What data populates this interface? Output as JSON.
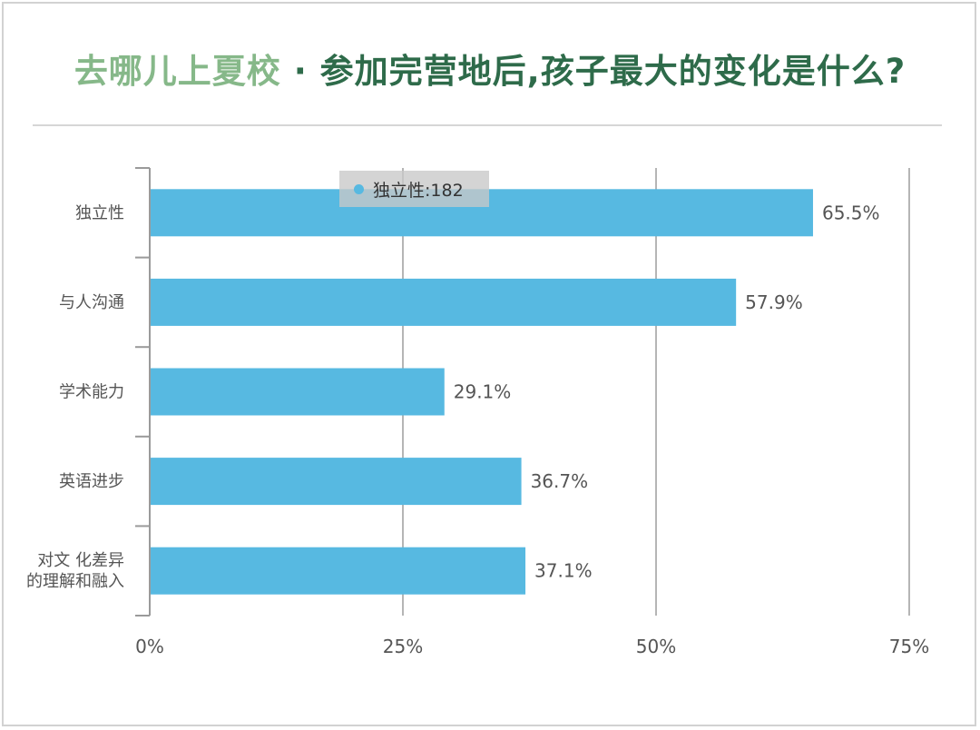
{
  "header": {
    "lead": "去哪儿上夏校",
    "separator": "·",
    "title": "参加完营地后,孩子最大的变化是什么?"
  },
  "tooltip": {
    "text": "独立性:182"
  },
  "colors": {
    "bar": "#57b9e1",
    "title_lead": "#86b889",
    "title_main": "#2e6b4a",
    "grid": "#b5b5b5"
  },
  "chart_data": {
    "type": "bar",
    "orientation": "horizontal",
    "categories": [
      [
        "独立性"
      ],
      [
        "与人沟通"
      ],
      [
        "学术能力"
      ],
      [
        "英语进步"
      ],
      [
        "对文 化差异",
        "的理解和融入"
      ]
    ],
    "values": [
      65.5,
      57.9,
      29.1,
      36.7,
      37.1
    ],
    "value_labels": [
      "65.5%",
      "57.9%",
      "29.1%",
      "36.7%",
      "37.1%"
    ],
    "xlim": [
      0,
      75
    ],
    "xticks": [
      0,
      25,
      50,
      75
    ],
    "xtick_labels": [
      "0%",
      "25%",
      "50%",
      "75%"
    ],
    "grid": true,
    "legend": "none"
  }
}
